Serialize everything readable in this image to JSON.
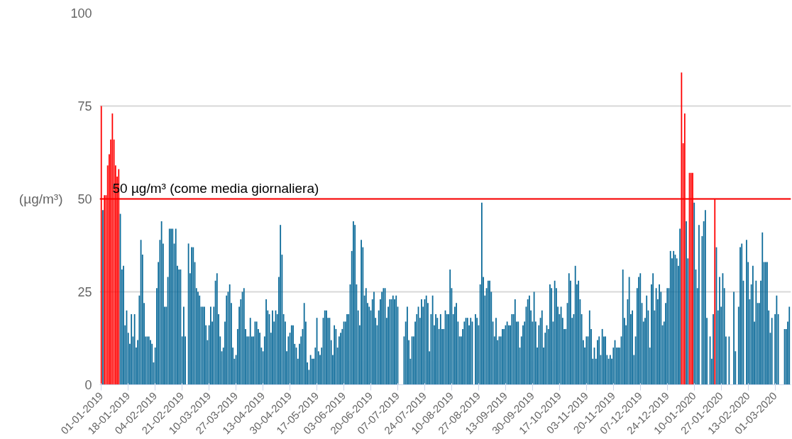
{
  "chart_data": {
    "type": "bar",
    "ylabel": "(µg/m³)",
    "ylim": [
      0,
      100
    ],
    "yticks": [
      0,
      25,
      50,
      75,
      100
    ],
    "grid": "y",
    "xlim": [
      "2018-12-31",
      "2020-03-11"
    ],
    "xticks": [
      {
        "value": "2019-01-01",
        "label": "01-01-2019"
      },
      {
        "value": "2019-01-18",
        "label": "18-01-2019"
      },
      {
        "value": "2019-02-04",
        "label": "04-02-2019"
      },
      {
        "value": "2019-02-21",
        "label": "21-02-2019"
      },
      {
        "value": "2019-03-10",
        "label": "10-03-2019"
      },
      {
        "value": "2019-03-27",
        "label": "27-03-2019"
      },
      {
        "value": "2019-04-13",
        "label": "13-04-2019"
      },
      {
        "value": "2019-04-30",
        "label": "30-04-2019"
      },
      {
        "value": "2019-05-17",
        "label": "17-05-2019"
      },
      {
        "value": "2019-06-03",
        "label": "03-06-2019"
      },
      {
        "value": "2019-06-20",
        "label": "20-06-2019"
      },
      {
        "value": "2019-07-07",
        "label": "07-07-2019"
      },
      {
        "value": "2019-07-24",
        "label": "24-07-2019"
      },
      {
        "value": "2019-08-10",
        "label": "10-08-2019"
      },
      {
        "value": "2019-08-27",
        "label": "27-08-2019"
      },
      {
        "value": "2019-09-13",
        "label": "13-09-2019"
      },
      {
        "value": "2019-09-30",
        "label": "30-09-2019"
      },
      {
        "value": "2019-10-17",
        "label": "17-10-2019"
      },
      {
        "value": "2019-11-03",
        "label": "03-11-2019"
      },
      {
        "value": "2019-11-20",
        "label": "20-11-2019"
      },
      {
        "value": "2019-12-07",
        "label": "07-12-2019"
      },
      {
        "value": "2019-12-24",
        "label": "24-12-2019"
      },
      {
        "value": "2020-01-10",
        "label": "10-01-2020"
      },
      {
        "value": "2020-01-27",
        "label": "27-01-2020"
      },
      {
        "value": "2020-02-13",
        "label": "13-02-2020"
      },
      {
        "value": "2020-03-01",
        "label": "01-03-2020"
      }
    ],
    "ref_lines": [
      {
        "axis": "y",
        "value": 50,
        "label": "50 µg/m³ (come media giornaliera)",
        "color": "#ff0000"
      }
    ],
    "x": [
      "2019-01-02",
      "2019-01-03",
      "2019-01-04",
      "2019-01-05",
      "2019-01-06",
      "2019-01-07",
      "2019-01-08",
      "2019-01-09",
      "2019-01-10",
      "2019-01-11",
      "2019-01-12",
      "2019-01-13",
      "2019-01-14",
      "2019-01-15",
      "2019-01-16",
      "2019-01-17",
      "2019-01-18",
      "2019-01-19",
      "2019-01-20",
      "2019-01-21",
      "2019-01-22",
      "2019-01-23",
      "2019-01-24",
      "2019-01-25",
      "2019-01-26",
      "2019-01-27",
      "2019-01-28",
      "2019-01-29",
      "2019-01-30",
      "2019-01-31",
      "2019-02-01",
      "2019-02-02",
      "2019-02-03",
      "2019-02-04",
      "2019-02-05",
      "2019-02-06",
      "2019-02-07",
      "2019-02-08",
      "2019-02-09",
      "2019-02-10",
      "2019-02-11",
      "2019-02-12",
      "2019-02-13",
      "2019-02-14",
      "2019-02-15",
      "2019-02-16",
      "2019-02-17",
      "2019-02-18",
      "2019-02-19",
      "2019-02-20",
      "2019-02-21",
      "2019-02-22",
      "2019-02-23",
      "2019-02-24",
      "2019-02-25",
      "2019-02-26",
      "2019-02-27",
      "2019-02-28",
      "2019-03-01",
      "2019-03-02",
      "2019-03-03",
      "2019-03-04",
      "2019-03-05",
      "2019-03-06",
      "2019-03-07",
      "2019-03-08",
      "2019-03-09",
      "2019-03-10",
      "2019-03-11",
      "2019-03-12",
      "2019-03-13",
      "2019-03-14",
      "2019-03-15",
      "2019-03-16",
      "2019-03-17",
      "2019-03-18",
      "2019-03-19",
      "2019-03-20",
      "2019-03-21",
      "2019-03-22",
      "2019-03-23",
      "2019-03-24",
      "2019-03-25",
      "2019-03-26",
      "2019-03-27",
      "2019-03-28",
      "2019-03-29",
      "2019-03-30",
      "2019-03-31",
      "2019-04-01",
      "2019-04-02",
      "2019-04-03",
      "2019-04-04",
      "2019-04-05",
      "2019-04-06",
      "2019-04-07",
      "2019-04-08",
      "2019-04-09",
      "2019-04-10",
      "2019-04-11",
      "2019-04-12",
      "2019-04-13",
      "2019-04-14",
      "2019-04-15",
      "2019-04-16",
      "2019-04-17",
      "2019-04-18",
      "2019-04-19",
      "2019-04-20",
      "2019-04-21",
      "2019-04-22",
      "2019-04-23",
      "2019-04-24",
      "2019-04-25",
      "2019-04-26",
      "2019-04-27",
      "2019-04-28",
      "2019-04-29",
      "2019-04-30",
      "2019-05-01",
      "2019-05-02",
      "2019-05-03",
      "2019-05-04",
      "2019-05-05",
      "2019-05-06",
      "2019-05-07",
      "2019-05-08",
      "2019-05-09",
      "2019-05-10",
      "2019-05-11",
      "2019-05-12",
      "2019-05-13",
      "2019-05-14",
      "2019-05-15",
      "2019-05-16",
      "2019-05-17",
      "2019-05-18",
      "2019-05-19",
      "2019-05-20",
      "2019-05-21",
      "2019-05-22",
      "2019-05-23",
      "2019-05-24",
      "2019-05-25",
      "2019-05-26",
      "2019-05-27",
      "2019-05-28",
      "2019-05-29",
      "2019-05-30",
      "2019-05-31",
      "2019-06-01",
      "2019-06-02",
      "2019-06-03",
      "2019-06-04",
      "2019-06-05",
      "2019-06-06",
      "2019-06-07",
      "2019-06-08",
      "2019-06-09",
      "2019-06-10",
      "2019-06-11",
      "2019-06-12",
      "2019-06-13",
      "2019-06-14",
      "2019-06-15",
      "2019-06-16",
      "2019-06-17",
      "2019-06-18",
      "2019-06-19",
      "2019-06-20",
      "2019-06-21",
      "2019-06-22",
      "2019-06-23",
      "2019-06-24",
      "2019-06-25",
      "2019-06-26",
      "2019-06-27",
      "2019-06-28",
      "2019-06-29",
      "2019-06-30",
      "2019-07-01",
      "2019-07-02",
      "2019-07-03",
      "2019-07-04",
      "2019-07-05",
      "2019-07-06",
      "2019-07-07",
      "2019-07-08",
      "2019-07-09",
      "2019-07-10",
      "2019-07-11",
      "2019-07-12",
      "2019-07-13",
      "2019-07-14",
      "2019-07-15",
      "2019-07-16",
      "2019-07-17",
      "2019-07-18",
      "2019-07-19",
      "2019-07-20",
      "2019-07-21",
      "2019-07-22",
      "2019-07-23",
      "2019-07-24",
      "2019-07-25",
      "2019-07-26",
      "2019-07-27",
      "2019-07-28",
      "2019-07-29",
      "2019-07-30",
      "2019-07-31",
      "2019-08-01",
      "2019-08-02",
      "2019-08-03",
      "2019-08-04",
      "2019-08-05",
      "2019-08-06",
      "2019-08-07",
      "2019-08-08",
      "2019-08-09",
      "2019-08-10",
      "2019-08-11",
      "2019-08-12",
      "2019-08-13",
      "2019-08-14",
      "2019-08-15",
      "2019-08-16",
      "2019-08-17",
      "2019-08-18",
      "2019-08-19",
      "2019-08-20",
      "2019-08-21",
      "2019-08-22",
      "2019-08-23",
      "2019-08-24",
      "2019-08-25",
      "2019-08-26",
      "2019-08-27",
      "2019-08-28",
      "2019-08-29",
      "2019-08-30",
      "2019-08-31",
      "2019-09-01",
      "2019-09-02",
      "2019-09-03",
      "2019-09-04",
      "2019-09-05",
      "2019-09-06",
      "2019-09-07",
      "2019-09-08",
      "2019-09-09",
      "2019-09-10",
      "2019-09-11",
      "2019-09-12",
      "2019-09-13",
      "2019-09-14",
      "2019-09-15",
      "2019-09-16",
      "2019-09-17",
      "2019-09-18",
      "2019-09-19",
      "2019-09-20",
      "2019-09-21",
      "2019-09-22",
      "2019-09-23",
      "2019-09-24",
      "2019-09-25",
      "2019-09-26",
      "2019-09-27",
      "2019-09-28",
      "2019-09-29",
      "2019-09-30",
      "2019-10-01",
      "2019-10-02",
      "2019-10-03",
      "2019-10-04",
      "2019-10-05",
      "2019-10-06",
      "2019-10-07",
      "2019-10-08",
      "2019-10-09",
      "2019-10-10",
      "2019-10-11",
      "2019-10-12",
      "2019-10-13",
      "2019-10-14",
      "2019-10-15",
      "2019-10-16",
      "2019-10-17",
      "2019-10-18",
      "2019-10-19",
      "2019-10-20",
      "2019-10-21",
      "2019-10-22",
      "2019-10-23",
      "2019-10-24",
      "2019-10-25",
      "2019-10-26",
      "2019-10-27",
      "2019-10-28",
      "2019-10-29",
      "2019-10-30",
      "2019-10-31",
      "2019-11-01",
      "2019-11-02",
      "2019-11-03",
      "2019-11-04",
      "2019-11-05",
      "2019-11-06",
      "2019-11-07",
      "2019-11-08",
      "2019-11-09",
      "2019-11-10",
      "2019-11-11",
      "2019-11-12",
      "2019-11-13",
      "2019-11-14",
      "2019-11-15",
      "2019-11-16",
      "2019-11-17",
      "2019-11-18",
      "2019-11-19",
      "2019-11-20",
      "2019-11-21",
      "2019-11-22",
      "2019-11-23",
      "2019-11-24",
      "2019-11-25",
      "2019-11-26",
      "2019-11-27",
      "2019-11-28",
      "2019-11-29",
      "2019-11-30",
      "2019-12-01",
      "2019-12-02",
      "2019-12-03",
      "2019-12-04",
      "2019-12-05",
      "2019-12-06",
      "2019-12-07",
      "2019-12-08",
      "2019-12-09",
      "2019-12-10",
      "2019-12-11",
      "2019-12-12",
      "2019-12-13",
      "2019-12-14",
      "2019-12-15",
      "2019-12-16",
      "2019-12-17",
      "2019-12-18",
      "2019-12-19",
      "2019-12-20",
      "2019-12-21",
      "2019-12-22",
      "2019-12-23",
      "2019-12-24",
      "2019-12-25",
      "2019-12-26",
      "2019-12-27",
      "2019-12-28",
      "2019-12-29",
      "2019-12-30",
      "2019-12-31",
      "2020-01-01",
      "2020-01-02",
      "2020-01-03",
      "2020-01-04",
      "2020-01-05",
      "2020-01-06",
      "2020-01-07",
      "2020-01-08",
      "2020-01-09",
      "2020-01-10",
      "2020-01-11",
      "2020-01-12",
      "2020-01-13",
      "2020-01-14",
      "2020-01-15",
      "2020-01-16",
      "2020-01-17",
      "2020-01-18",
      "2020-01-19",
      "2020-01-20",
      "2020-01-21",
      "2020-01-22",
      "2020-01-23",
      "2020-01-24",
      "2020-01-25",
      "2020-01-26",
      "2020-01-27",
      "2020-01-28",
      "2020-01-29",
      "2020-01-30",
      "2020-01-31",
      "2020-02-01",
      "2020-02-02",
      "2020-02-03",
      "2020-02-04",
      "2020-02-05",
      "2020-02-06",
      "2020-02-07",
      "2020-02-08",
      "2020-02-09",
      "2020-02-10",
      "2020-02-11",
      "2020-02-12",
      "2020-02-13",
      "2020-02-14",
      "2020-02-15",
      "2020-02-16",
      "2020-02-17",
      "2020-02-18",
      "2020-02-19",
      "2020-02-20",
      "2020-02-21",
      "2020-02-22",
      "2020-02-23",
      "2020-02-24",
      "2020-02-25",
      "2020-02-26",
      "2020-02-27",
      "2020-02-28",
      "2020-02-29",
      "2020-03-01",
      "2020-03-02",
      "2020-03-03",
      "2020-03-04",
      "2020-03-05",
      "2020-03-06",
      "2020-03-07",
      "2020-03-08",
      "2020-03-09",
      "2020-03-10"
    ],
    "series": [
      {
        "color": "#0b6a99",
        "values": [
          47,
          null,
          null,
          null,
          null,
          null,
          null,
          null,
          null,
          null,
          null,
          46,
          31,
          32,
          16,
          20,
          14,
          11,
          19,
          13,
          19,
          10,
          12,
          24,
          39,
          35,
          22,
          13,
          13,
          13,
          12,
          11,
          6,
          10,
          26,
          33,
          39,
          44,
          38,
          21,
          21,
          29,
          42,
          42,
          42,
          38,
          42,
          32,
          31,
          31,
          13,
          21,
          13,
          null,
          38,
          30,
          37,
          37,
          33,
          26,
          25,
          24,
          21,
          21,
          21,
          16,
          12,
          16,
          21,
          17,
          21,
          28,
          30,
          19,
          13,
          9,
          10,
          17,
          24,
          25,
          27,
          22,
          10,
          7,
          8,
          15,
          21,
          23,
          25,
          26,
          15,
          13,
          13,
          18,
          13,
          13,
          17,
          17,
          15,
          14,
          10,
          9,
          13,
          23,
          20,
          19,
          14,
          20,
          17,
          20,
          19,
          29,
          43,
          35,
          19,
          17,
          9,
          13,
          14,
          16,
          16,
          11,
          10,
          7,
          11,
          13,
          15,
          22,
          17,
          6,
          4,
          8,
          7,
          7,
          10,
          18,
          9,
          8,
          10,
          18,
          20,
          20,
          18,
          18,
          12,
          8,
          16,
          15,
          10,
          13,
          14,
          15,
          17,
          17,
          19,
          19,
          27,
          36,
          44,
          43,
          27,
          20,
          16,
          39,
          37,
          24,
          26,
          22,
          21,
          20,
          23,
          25,
          18,
          16,
          20,
          23,
          25,
          26,
          26,
          18,
          21,
          23,
          23,
          24,
          23,
          24,
          21,
          null,
          null,
          null,
          13,
          17,
          21,
          12,
          7,
          13,
          13,
          17,
          19,
          21,
          18,
          23,
          21,
          23,
          24,
          22,
          9,
          19,
          24,
          16,
          19,
          18,
          15,
          19,
          15,
          15,
          20,
          19,
          19,
          31,
          26,
          19,
          21,
          22,
          17,
          13,
          13,
          15,
          17,
          18,
          18,
          16,
          18,
          17,
          null,
          19,
          18,
          16,
          27,
          49,
          29,
          24,
          26,
          28,
          28,
          25,
          17,
          13,
          18,
          12,
          13,
          13,
          15,
          15,
          16,
          17,
          16,
          16,
          19,
          19,
          23,
          17,
          17,
          10,
          13,
          16,
          17,
          21,
          23,
          24,
          20,
          17,
          25,
          17,
          10,
          16,
          18,
          20,
          10,
          14,
          16,
          15,
          27,
          26,
          17,
          28,
          26,
          21,
          19,
          21,
          18,
          15,
          15,
          22,
          30,
          28,
          18,
          19,
          32,
          27,
          28,
          23,
          19,
          12,
          10,
          13,
          13,
          20,
          15,
          7,
          10,
          7,
          12,
          13,
          8,
          15,
          13,
          13,
          8,
          7,
          8,
          7,
          10,
          12,
          10,
          10,
          10,
          13,
          31,
          18,
          16,
          23,
          29,
          19,
          20,
          8,
          13,
          26,
          29,
          30,
          22,
          17,
          18,
          24,
          20,
          10,
          27,
          30,
          20,
          26,
          23,
          27,
          25,
          16,
          17,
          22,
          26,
          26,
          36,
          34,
          36,
          35,
          34,
          32,
          42,
          null,
          null,
          null,
          44,
          34,
          null,
          null,
          null,
          49,
          31,
          26,
          43,
          null,
          40,
          44,
          47,
          18,
          null,
          13,
          7,
          19,
          null,
          37,
          20,
          29,
          21,
          30,
          26,
          13,
          null,
          13,
          null,
          null,
          25,
          9,
          null,
          21,
          37,
          38,
          28,
          null,
          39,
          33,
          23,
          27,
          32,
          17,
          28,
          22,
          22,
          28,
          41,
          33,
          33,
          33,
          20,
          14,
          18,
          null,
          19,
          24,
          19,
          null,
          null,
          null,
          15,
          15,
          17,
          21
        ]
      },
      {
        "color": "#ff0000",
        "x": [
          "2019-01-01",
          "2019-01-03",
          "2019-01-04",
          "2019-01-05",
          "2019-01-06",
          "2019-01-07",
          "2019-01-08",
          "2019-01-09",
          "2019-01-10",
          "2019-01-11",
          "2019-01-12",
          "2020-01-02",
          "2020-01-03",
          "2020-01-04",
          "2020-01-07",
          "2020-01-08",
          "2020-01-09",
          "2020-01-23"
        ],
        "values": [
          75,
          51,
          51,
          59,
          62,
          66,
          73,
          66,
          59,
          56,
          58,
          84,
          65,
          73,
          57,
          57,
          57,
          50
        ]
      }
    ]
  }
}
